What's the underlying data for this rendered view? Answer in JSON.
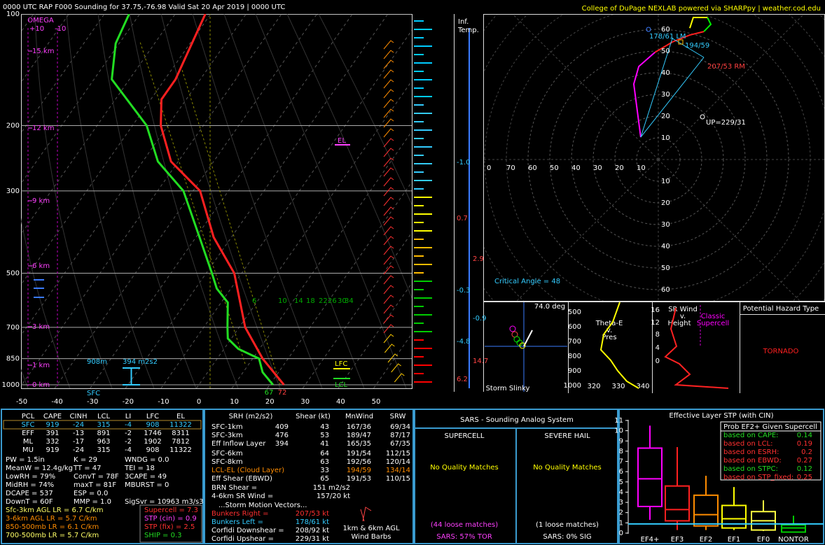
{
  "header": {
    "title": "0000 UTC RAP F000 Sounding for 37.75,-76.98 Valid  Sat 20 Apr 2019 | 0000 UTC",
    "credit": "College of DuPage NEXLAB powered via SHARPpy | weather.cod.edu"
  },
  "skewt": {
    "type": "line",
    "pressure_ticks": [
      100,
      200,
      300,
      500,
      700,
      850,
      1000
    ],
    "temperature_ticks": [
      -50,
      -40,
      -30,
      -20,
      -10,
      0,
      10,
      20,
      30,
      40,
      50
    ],
    "height_labels": [
      "15 km",
      "12 km",
      "9 km",
      "6 km",
      "3 km",
      "1 km",
      "0 km"
    ],
    "omega": {
      "title": "OMEGA",
      "left": "+10",
      "right": "-10"
    },
    "temperature": {
      "pressure": [
        1000,
        850,
        700,
        500,
        400,
        300,
        250,
        200,
        170,
        150,
        100
      ],
      "values": [
        24,
        12.8,
        1.7,
        -12.1,
        -25,
        -38,
        -52,
        -62,
        -67,
        -67,
        -71.5
      ]
    },
    "dewpoint": {
      "pressure": [
        1000,
        925,
        850,
        800,
        750,
        700,
        600,
        550,
        500,
        400,
        300,
        250,
        200,
        150,
        120,
        100
      ],
      "values": [
        20.9,
        15.5,
        11.8,
        4,
        -1,
        -3.3,
        -8.1,
        -14,
        -18.4,
        -29,
        -42.7,
        -55.7,
        -66,
        -85,
        -91,
        -93
      ]
    },
    "mixing_ratio_labels": [
      "6",
      "10",
      "14",
      "18",
      "22",
      "26",
      "30",
      "34"
    ],
    "labels": {
      "el": "EL",
      "lfc": "LFC",
      "lcl": "LCL",
      "inflow_depth": "908m",
      "inflow_srh": "394 m2s2",
      "sfc": "SFC",
      "surface_dewpoint": "67",
      "surface_temp": "72"
    }
  },
  "inferred_temp": {
    "title": [
      "Inf.",
      "Temp."
    ],
    "labels": [
      "-1.0",
      "0.7",
      "2.9",
      "-0.3",
      "-0.9",
      "-4.8",
      "14.7",
      "6.2"
    ]
  },
  "hodograph": {
    "type": "line",
    "x_labels": [
      0,
      70,
      60,
      50,
      40,
      30,
      20,
      10
    ],
    "ring_labels": [
      10,
      20,
      30,
      40,
      50,
      60
    ],
    "u": [
      -8.1,
      -11.3,
      -9,
      -1.6,
      6.5,
      14.5,
      21,
      24.2,
      22.6,
      16.1,
      14.5
    ],
    "v": [
      10.3,
      34.8,
      42.9,
      49.4,
      54.2,
      57.4,
      59,
      62.3,
      65.5,
      65.5,
      60.6
    ],
    "annotations": {
      "lm": "178/61 LM",
      "mean": "194/59",
      "rm": "207/53 RM",
      "up": "UP=229/31"
    },
    "critical_angle": "Critical Angle = 48"
  },
  "slinky": {
    "angle": "74.0 deg",
    "title": "Storm Slinky"
  },
  "theta_e": {
    "title": [
      "Theta-E",
      "v.",
      "Pres"
    ],
    "pressure_ticks": [
      500,
      600,
      700,
      800,
      900,
      1000
    ],
    "theta_ticks": [
      320,
      330,
      340
    ]
  },
  "sr_wind": {
    "title": [
      "SR Wind",
      "v.",
      "Height"
    ],
    "height_ticks": [
      16,
      12,
      8,
      4,
      0
    ],
    "classic": [
      "Classic",
      "Supercell"
    ]
  },
  "hazard": {
    "title": "Potential Hazard Type",
    "type": "TORNADO"
  },
  "parcels": {
    "header": [
      "PCL",
      "CAPE",
      "CINH",
      "LCL",
      "LI",
      "LFC",
      "EL"
    ],
    "rows": [
      [
        "SFC",
        "919",
        "-24",
        "315",
        "-4",
        "908",
        "11322"
      ],
      [
        "EFF",
        "391",
        "-13",
        "891",
        "-2",
        "1746",
        "8311"
      ],
      [
        "ML",
        "332",
        "-17",
        "963",
        "-2",
        "1902",
        "7812"
      ],
      [
        "MU",
        "919",
        "-24",
        "315",
        "-4",
        "908",
        "11322"
      ]
    ]
  },
  "indices": [
    [
      "PW = 1.5in",
      "K = 29",
      "WNDG = 0.0"
    ],
    [
      "MeanW = 12.4g/kg",
      "TT = 47",
      "TEI = 18"
    ],
    [
      "LowRH = 79%",
      "ConvT = 78F",
      "3CAPE = 49"
    ],
    [
      "MidRH = 74%",
      "maxT = 81F",
      "MBURST = 0"
    ],
    [
      "DCAPE = 537",
      "ESP = 0.0"
    ],
    [
      "DownT = 60F",
      "MMP = 1.0",
      "SigSvr = 10963 m3/s3"
    ]
  ],
  "lapse_rates": [
    "Sfc-3km AGL LR = 6.7 C/km",
    "3-6km AGL LR = 5.7 C/km",
    "850-500mb LR = 6.1 C/km",
    "700-500mb LR = 5.7 C/km"
  ],
  "composites": [
    "Supercell = 7.3",
    "STP (cin) = 0.9",
    "STP (fix) = 2.5",
    "SHIP = 0.3"
  ],
  "kinematics": {
    "header": [
      "SRH (m2/s2)",
      "Shear (kt)",
      "MnWind",
      "SRW"
    ],
    "rows": [
      [
        "SFC-1km",
        "409",
        "43",
        "167/36",
        "69/34"
      ],
      [
        "SFC-3km",
        "476",
        "53",
        "189/47",
        "87/17"
      ],
      [
        "Eff Inflow Layer",
        "394",
        "41",
        "165/35",
        "67/35"
      ],
      [
        "SFC-6km",
        null,
        "64",
        "191/54",
        "112/15"
      ],
      [
        "SFC-8km",
        null,
        "63",
        "192/56",
        "120/14"
      ],
      [
        "LCL-EL (Cloud Layer)",
        null,
        "33",
        "194/59",
        "134/14"
      ],
      [
        "Eff Shear (EBWD)",
        null,
        "65",
        "191/53",
        "110/15"
      ]
    ],
    "brn": [
      [
        "BRN Shear =",
        "151 m2/s2"
      ],
      [
        "4-6km SR Wind =",
        "157/20 kt"
      ]
    ],
    "storm_motion_title": "...Storm Motion Vectors...",
    "storm_motion": [
      [
        "Bunkers Right =",
        "207/53 kt"
      ],
      [
        "Bunkers Left =",
        "178/61 kt"
      ],
      [
        "Corfidi Downshear =",
        "208/92 kt"
      ],
      [
        "Corfidi Upshear =",
        "229/31 kt"
      ]
    ],
    "barb_caption": [
      "1km & 6km AGL",
      "Wind Barbs"
    ]
  },
  "sars": {
    "title": "SARS - Sounding Analog System",
    "supercell": {
      "title": "SUPERCELL",
      "result": "No Quality Matches",
      "loose": "(44 loose matches)",
      "sig": "SARS: 57% TOR"
    },
    "hail": {
      "title": "SEVERE HAIL",
      "result": "No Quality Matches",
      "loose": "(1 loose matches)",
      "sig": "SARS: 0% SIG"
    }
  },
  "stp": {
    "type": "box",
    "title": "Effective Layer STP (with CIN)",
    "ylim": [
      0,
      11
    ],
    "yticks": [
      0,
      1,
      2,
      3,
      4,
      5,
      6,
      7,
      8,
      9,
      10,
      11
    ],
    "categories": [
      "EF4+",
      "EF3",
      "EF2",
      "EF1",
      "EF0",
      "NONTOR"
    ],
    "colors": [
      "#ff00ff",
      "#ff2020",
      "#ff8c00",
      "#ffff00",
      "#ffff40",
      "#00cc00"
    ],
    "whisker_low": [
      1.3,
      0.3,
      0.3,
      0.3,
      0.2,
      0.1
    ],
    "q1": [
      2.6,
      1.2,
      0.7,
      0.5,
      0.3,
      0.1
    ],
    "median": [
      5.3,
      2.3,
      1.8,
      1.4,
      1.2,
      0.5
    ],
    "q3": [
      8.3,
      4.6,
      3.7,
      2.7,
      2.1,
      0.8
    ],
    "whisker_high": [
      10.5,
      8.4,
      5.6,
      4.5,
      3.2,
      1.7
    ],
    "current": 0.9,
    "prob": {
      "title": "Prob EF2+ Given Supercell",
      "rows": [
        [
          "based on CAPE:",
          "0.14"
        ],
        [
          "based on LCL:",
          "0.19"
        ],
        [
          "based on ESRH:",
          "0.2"
        ],
        [
          "based on EBWD:",
          "0.27"
        ],
        [
          "based on STPC:",
          "0.12"
        ],
        [
          "based on STP_fixed:",
          "0.25"
        ]
      ]
    }
  }
}
